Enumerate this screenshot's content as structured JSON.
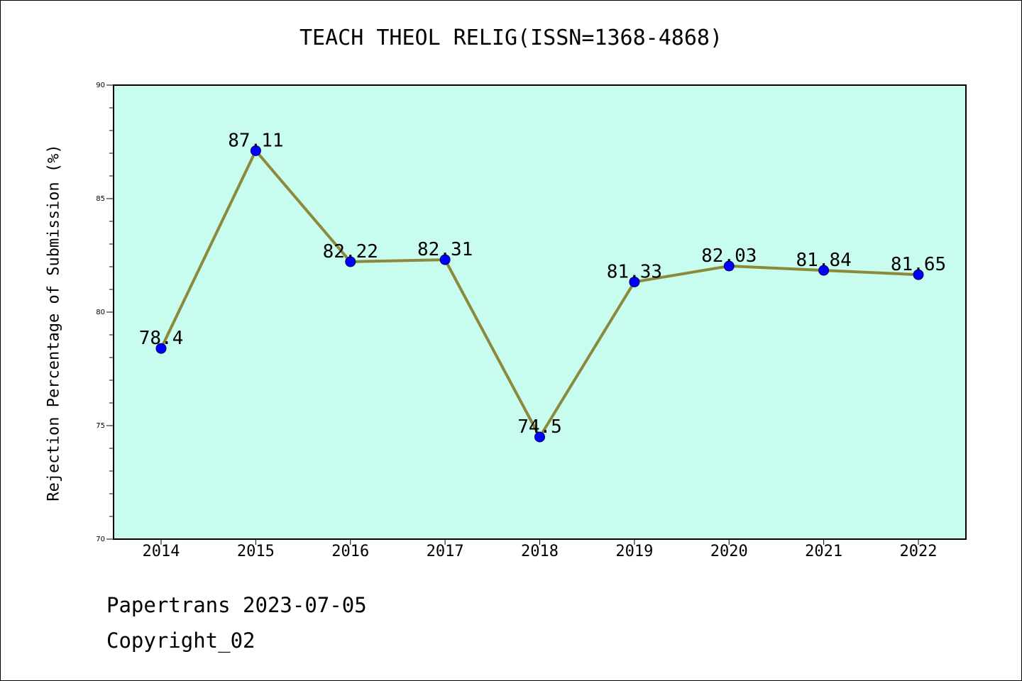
{
  "chart_data": {
    "type": "line",
    "title": "TEACH THEOL RELIG(ISSN=1368-4868)",
    "xlabel": "",
    "ylabel": "Rejection Percentage of Submission (%)",
    "categories": [
      "2014",
      "2015",
      "2016",
      "2017",
      "2018",
      "2019",
      "2020",
      "2021",
      "2022"
    ],
    "series": [
      {
        "values": [
          78.4,
          87.11,
          82.22,
          82.31,
          74.5,
          81.33,
          82.03,
          81.84,
          81.65
        ]
      }
    ],
    "data_labels": [
      "78.4",
      "87.11",
      "82.22",
      "82.31",
      "74.5",
      "81.33",
      "82.03",
      "81.84",
      "81.65"
    ],
    "ylim": [
      70,
      90
    ],
    "y_ticks": [
      "70",
      "75",
      "80",
      "85",
      "90"
    ],
    "grid": false,
    "colors": {
      "plot_background": "#c8fcee",
      "line": "#8b8a3c",
      "marker": "#0000ff"
    }
  },
  "footer": {
    "line1": "Papertrans 2023-07-05",
    "line2": "Copyright_02"
  }
}
